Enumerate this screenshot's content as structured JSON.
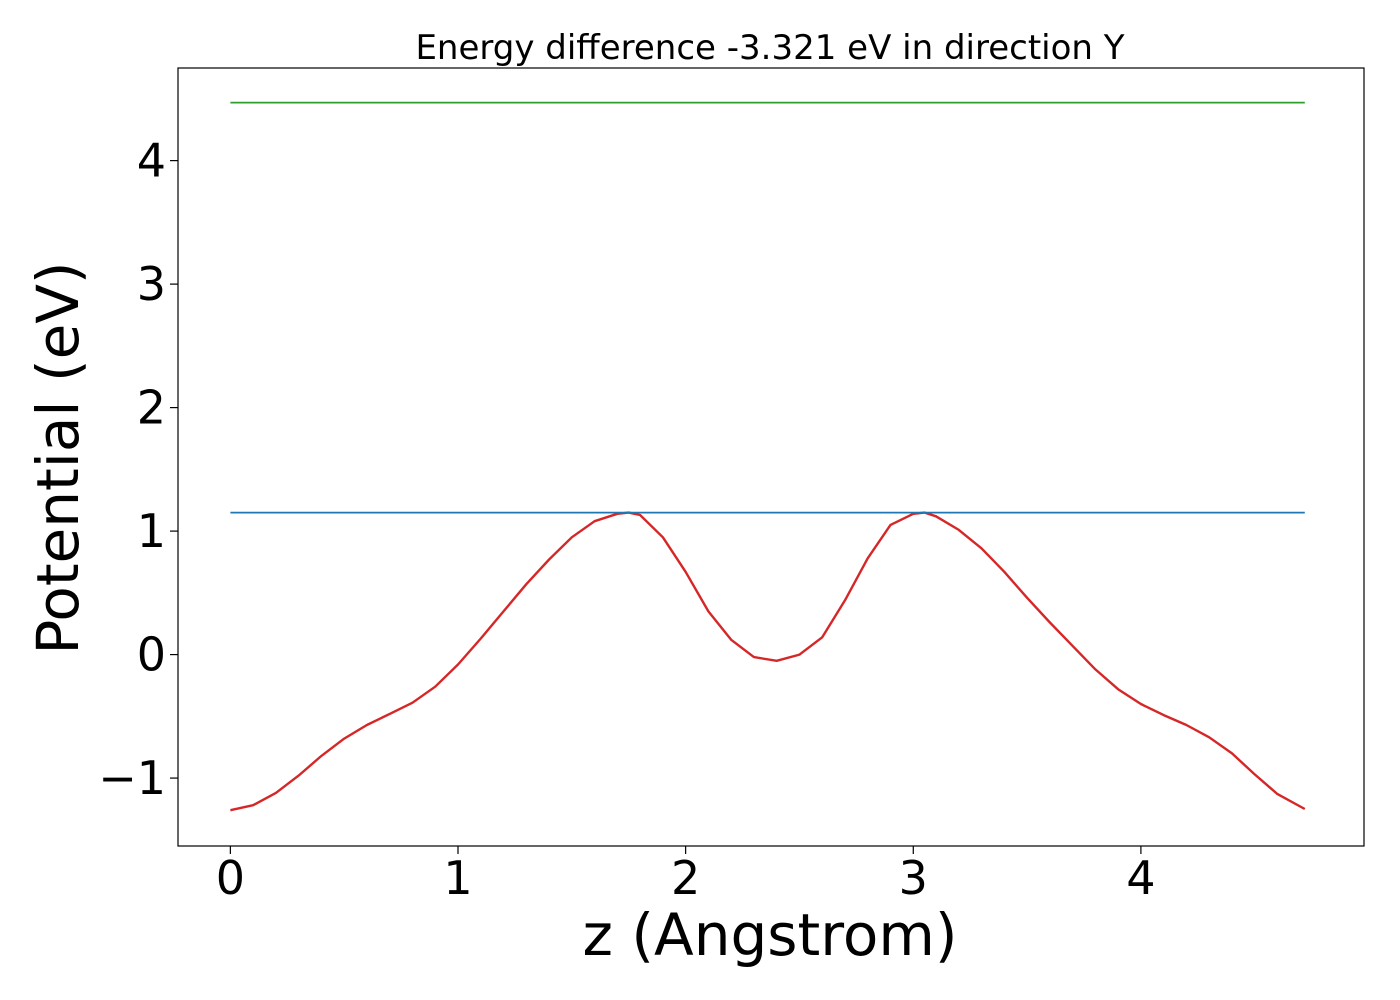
{
  "chart_data": {
    "type": "line",
    "title": "Energy difference -3.321 eV in direction Y",
    "xlabel": "z (Angstrom)",
    "ylabel": "Potential (eV)",
    "xlim": [
      -0.23,
      4.98
    ],
    "ylim": [
      -1.55,
      4.75
    ],
    "xticks": [
      0,
      1,
      2,
      3,
      4
    ],
    "xtick_labels": [
      "0",
      "1",
      "2",
      "3",
      "4"
    ],
    "yticks": [
      -1,
      0,
      1,
      2,
      3,
      4
    ],
    "ytick_labels": [
      "−1",
      "0",
      "1",
      "2",
      "3",
      "4"
    ],
    "grid": false,
    "series": [
      {
        "color": "#d62728",
        "x": [
          0.0,
          0.1,
          0.2,
          0.3,
          0.4,
          0.5,
          0.6,
          0.7,
          0.8,
          0.9,
          1.0,
          1.1,
          1.2,
          1.3,
          1.4,
          1.5,
          1.6,
          1.7,
          1.75,
          1.8,
          1.9,
          2.0,
          2.1,
          2.2,
          2.3,
          2.4,
          2.5,
          2.6,
          2.7,
          2.8,
          2.9,
          3.0,
          3.05,
          3.1,
          3.2,
          3.3,
          3.4,
          3.5,
          3.6,
          3.7,
          3.8,
          3.9,
          4.0,
          4.1,
          4.2,
          4.3,
          4.4,
          4.5,
          4.6,
          4.72
        ],
        "y": [
          -1.26,
          -1.22,
          -1.12,
          -0.98,
          -0.82,
          -0.68,
          -0.57,
          -0.48,
          -0.39,
          -0.26,
          -0.08,
          0.13,
          0.35,
          0.57,
          0.77,
          0.95,
          1.08,
          1.14,
          1.15,
          1.13,
          0.95,
          0.67,
          0.35,
          0.12,
          -0.02,
          -0.05,
          0.0,
          0.14,
          0.44,
          0.78,
          1.05,
          1.14,
          1.15,
          1.12,
          1.01,
          0.86,
          0.67,
          0.46,
          0.26,
          0.07,
          -0.12,
          -0.28,
          -0.4,
          -0.49,
          -0.57,
          -0.67,
          -0.8,
          -0.97,
          -1.13,
          -1.25
        ]
      },
      {
        "color": "#1f77b4",
        "x": [
          0.0,
          4.72
        ],
        "y": [
          1.15,
          1.15
        ]
      },
      {
        "color": "#2ca02c",
        "x": [
          0.0,
          4.72
        ],
        "y": [
          4.47,
          4.47
        ]
      }
    ]
  }
}
